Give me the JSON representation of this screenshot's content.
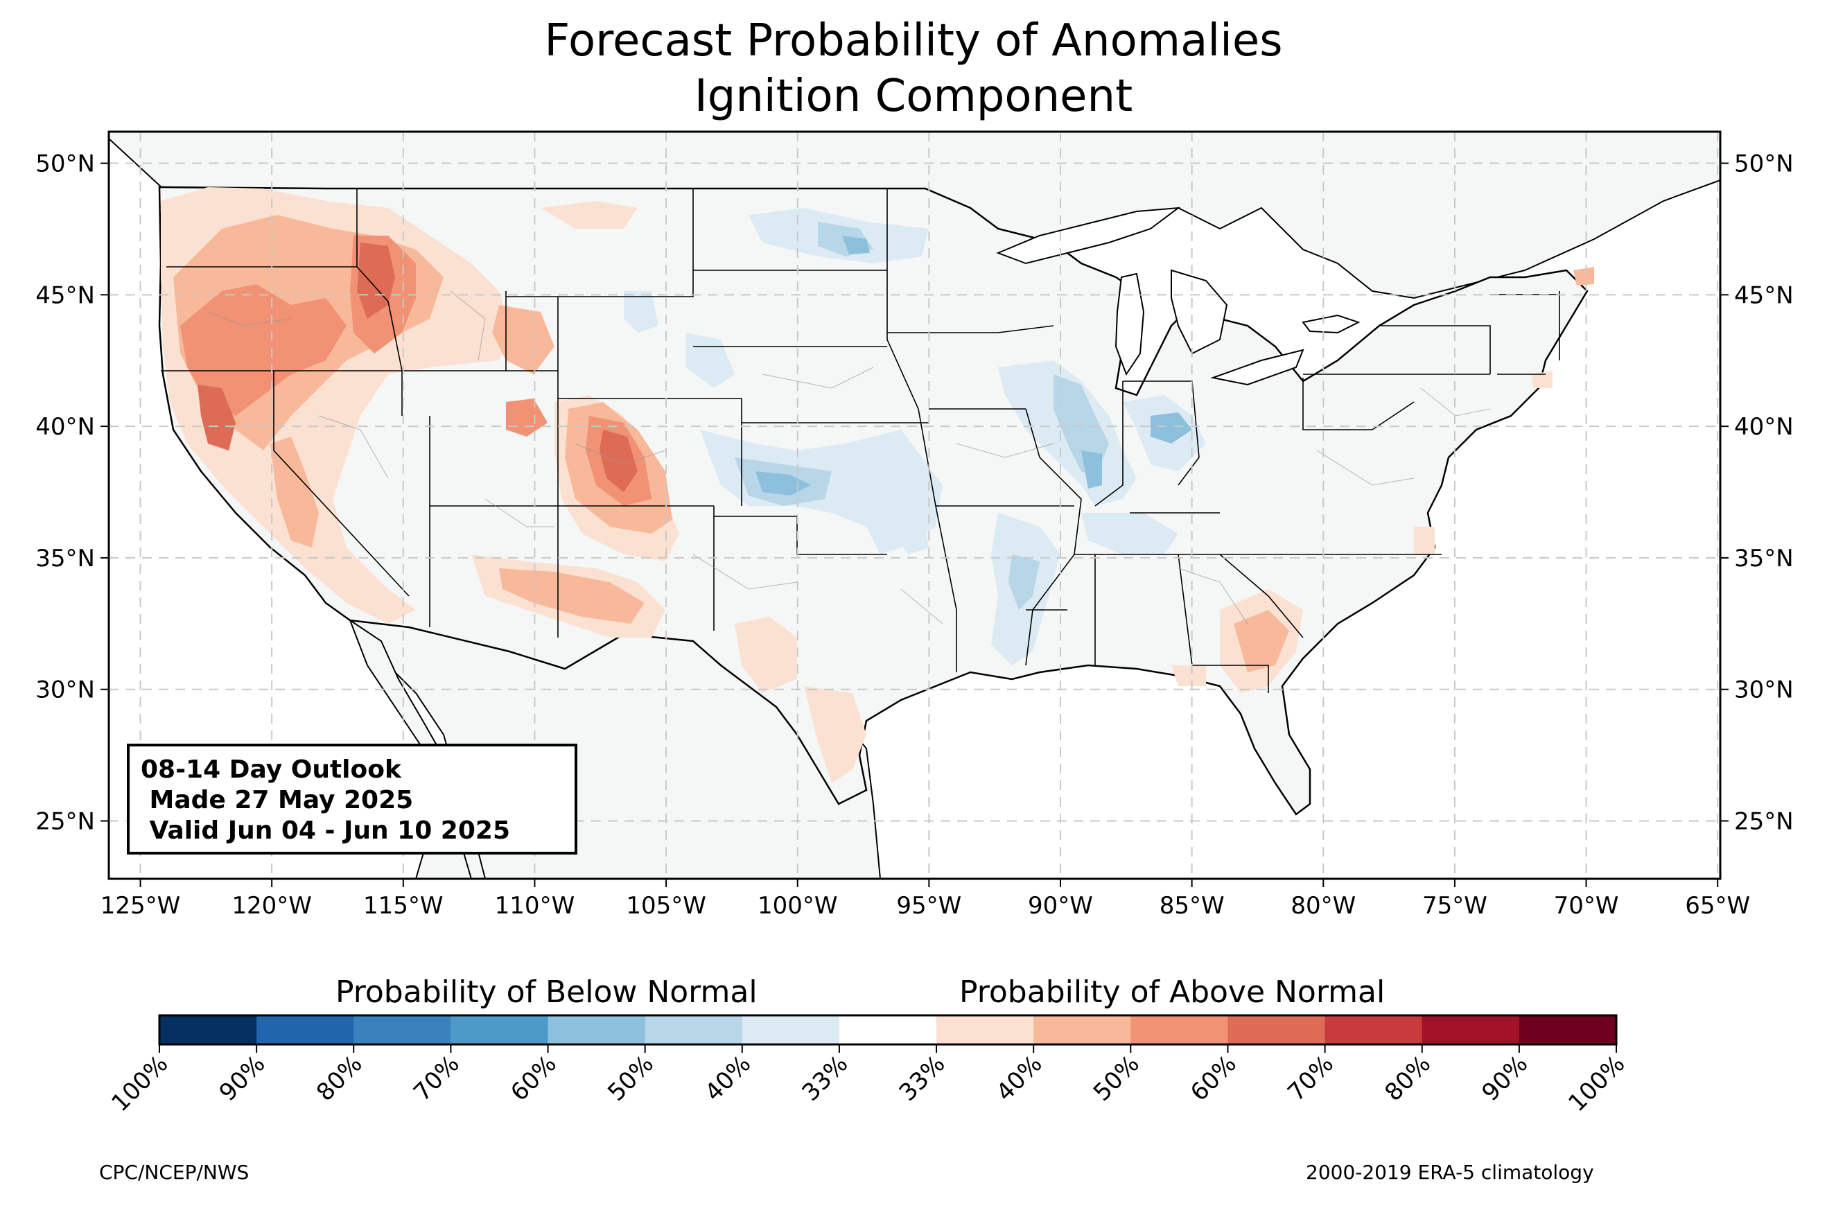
{
  "title": {
    "line1": "Forecast Probability of Anomalies",
    "line2": "Ignition Component"
  },
  "outlook": {
    "line1": "08-14 Day Outlook",
    "line2": " Made 27 May 2025",
    "line3": " Valid Jun 04 - Jun 10 2025"
  },
  "axes": {
    "lon_labels": [
      "125°W",
      "120°W",
      "115°W",
      "110°W",
      "105°W",
      "100°W",
      "95°W",
      "90°W",
      "85°W",
      "80°W",
      "75°W",
      "70°W",
      "65°W"
    ],
    "lat_labels": [
      "50°N",
      "45°N",
      "40°N",
      "35°N",
      "30°N",
      "25°N"
    ],
    "lon_values": [
      -125,
      -120,
      -115,
      -110,
      -105,
      -100,
      -95,
      -90,
      -85,
      -80,
      -75,
      -70,
      -65
    ],
    "lat_values": [
      50,
      45,
      40,
      35,
      30,
      25
    ],
    "lon_range": [
      -126.2,
      -64.9
    ],
    "lat_range": [
      22.8,
      51.2
    ],
    "gridlines": true
  },
  "colorbar": {
    "below_title": "Probability of Below Normal",
    "above_title": "Probability of Above Normal",
    "tick_labels": [
      "100%",
      "90%",
      "80%",
      "70%",
      "60%",
      "50%",
      "40%",
      "33%",
      "33%",
      "40%",
      "50%",
      "60%",
      "70%",
      "80%",
      "90%",
      "100%"
    ],
    "colors": [
      "#053061",
      "#2166ac",
      "#3a82be",
      "#4d9ac8",
      "#8cc0dd",
      "#b7d6e8",
      "#dbeaf3",
      "#ffffff",
      "#fbe1d2",
      "#f8b99b",
      "#f09273",
      "#de6b55",
      "#c83a3c",
      "#a11228",
      "#6e0120"
    ]
  },
  "map": {
    "land_color": "#f5f7f6",
    "below_colors": {
      "b33": "#dbeaf3",
      "b40": "#b7d6e8",
      "b50": "#8cc0dd"
    },
    "above_colors": {
      "a33": "#fbe1d2",
      "a40": "#f8b99b",
      "a50": "#f09273",
      "a60": "#de6b55"
    }
  },
  "credits": {
    "left": "CPC/NCEP/NWS",
    "right": "2000-2019 ERA-5 climatology"
  }
}
